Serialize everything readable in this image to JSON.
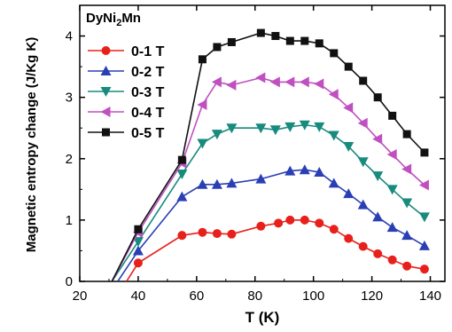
{
  "chart_data": {
    "type": "line",
    "title": "",
    "annotation": {
      "text_main": "DyNi",
      "text_sub": "2",
      "text_tail": "Mn"
    },
    "xlabel": "T (K)",
    "ylabel": "Magnetic entropy change (J/Kg K)",
    "xlim": [
      20,
      145
    ],
    "ylim": [
      0,
      4.5
    ],
    "xticks": [
      20,
      40,
      60,
      80,
      100,
      120,
      140
    ],
    "yticks": [
      0,
      1,
      2,
      3,
      4
    ],
    "legend_position": "top-left",
    "series": [
      {
        "name": "0-1 T",
        "color": "#e8201b",
        "marker": "circle",
        "x": [
          36,
          40,
          55,
          62,
          67,
          72,
          82,
          88,
          92,
          97,
          102,
          107,
          112,
          117,
          122,
          127,
          132,
          138
        ],
        "y": [
          0,
          0.3,
          0.75,
          0.8,
          0.78,
          0.77,
          0.9,
          0.95,
          1.0,
          1.0,
          0.95,
          0.85,
          0.7,
          0.57,
          0.45,
          0.35,
          0.25,
          0.2
        ]
      },
      {
        "name": "0-2 T",
        "color": "#2b3fb5",
        "marker": "triangle-up",
        "x": [
          33,
          40,
          55,
          62,
          67,
          72,
          82,
          92,
          97,
          102,
          107,
          112,
          117,
          122,
          127,
          132,
          138
        ],
        "y": [
          0,
          0.5,
          1.38,
          1.58,
          1.58,
          1.6,
          1.67,
          1.8,
          1.82,
          1.78,
          1.6,
          1.43,
          1.25,
          1.05,
          0.88,
          0.75,
          0.58
        ]
      },
      {
        "name": "0-3 T",
        "color": "#178b7e",
        "marker": "triangle-down",
        "x": [
          31,
          40,
          55,
          62,
          67,
          72,
          82,
          87,
          92,
          97,
          102,
          107,
          112,
          117,
          122,
          127,
          132,
          138
        ],
        "y": [
          0,
          0.65,
          1.75,
          2.25,
          2.4,
          2.5,
          2.5,
          2.47,
          2.52,
          2.55,
          2.52,
          2.38,
          2.2,
          1.95,
          1.72,
          1.5,
          1.28,
          1.05
        ]
      },
      {
        "name": "0-4 T",
        "color": "#c050c0",
        "marker": "triangle-left",
        "x": [
          31,
          40,
          55,
          62,
          67,
          72,
          82,
          87,
          92,
          97,
          102,
          107,
          112,
          117,
          122,
          127,
          132,
          138
        ],
        "y": [
          0,
          0.8,
          1.93,
          2.88,
          3.25,
          3.2,
          3.32,
          3.25,
          3.25,
          3.25,
          3.22,
          3.05,
          2.83,
          2.58,
          2.32,
          2.07,
          1.83,
          1.57
        ]
      },
      {
        "name": "0-5 T",
        "color": "#111111",
        "marker": "square",
        "x": [
          31,
          40,
          55,
          62,
          67,
          72,
          82,
          87,
          92,
          97,
          102,
          107,
          112,
          117,
          122,
          127,
          132,
          138
        ],
        "y": [
          0,
          0.85,
          1.98,
          3.62,
          3.82,
          3.9,
          4.05,
          4.0,
          3.92,
          3.92,
          3.88,
          3.72,
          3.5,
          3.27,
          3.0,
          2.7,
          2.4,
          2.1
        ]
      }
    ]
  }
}
